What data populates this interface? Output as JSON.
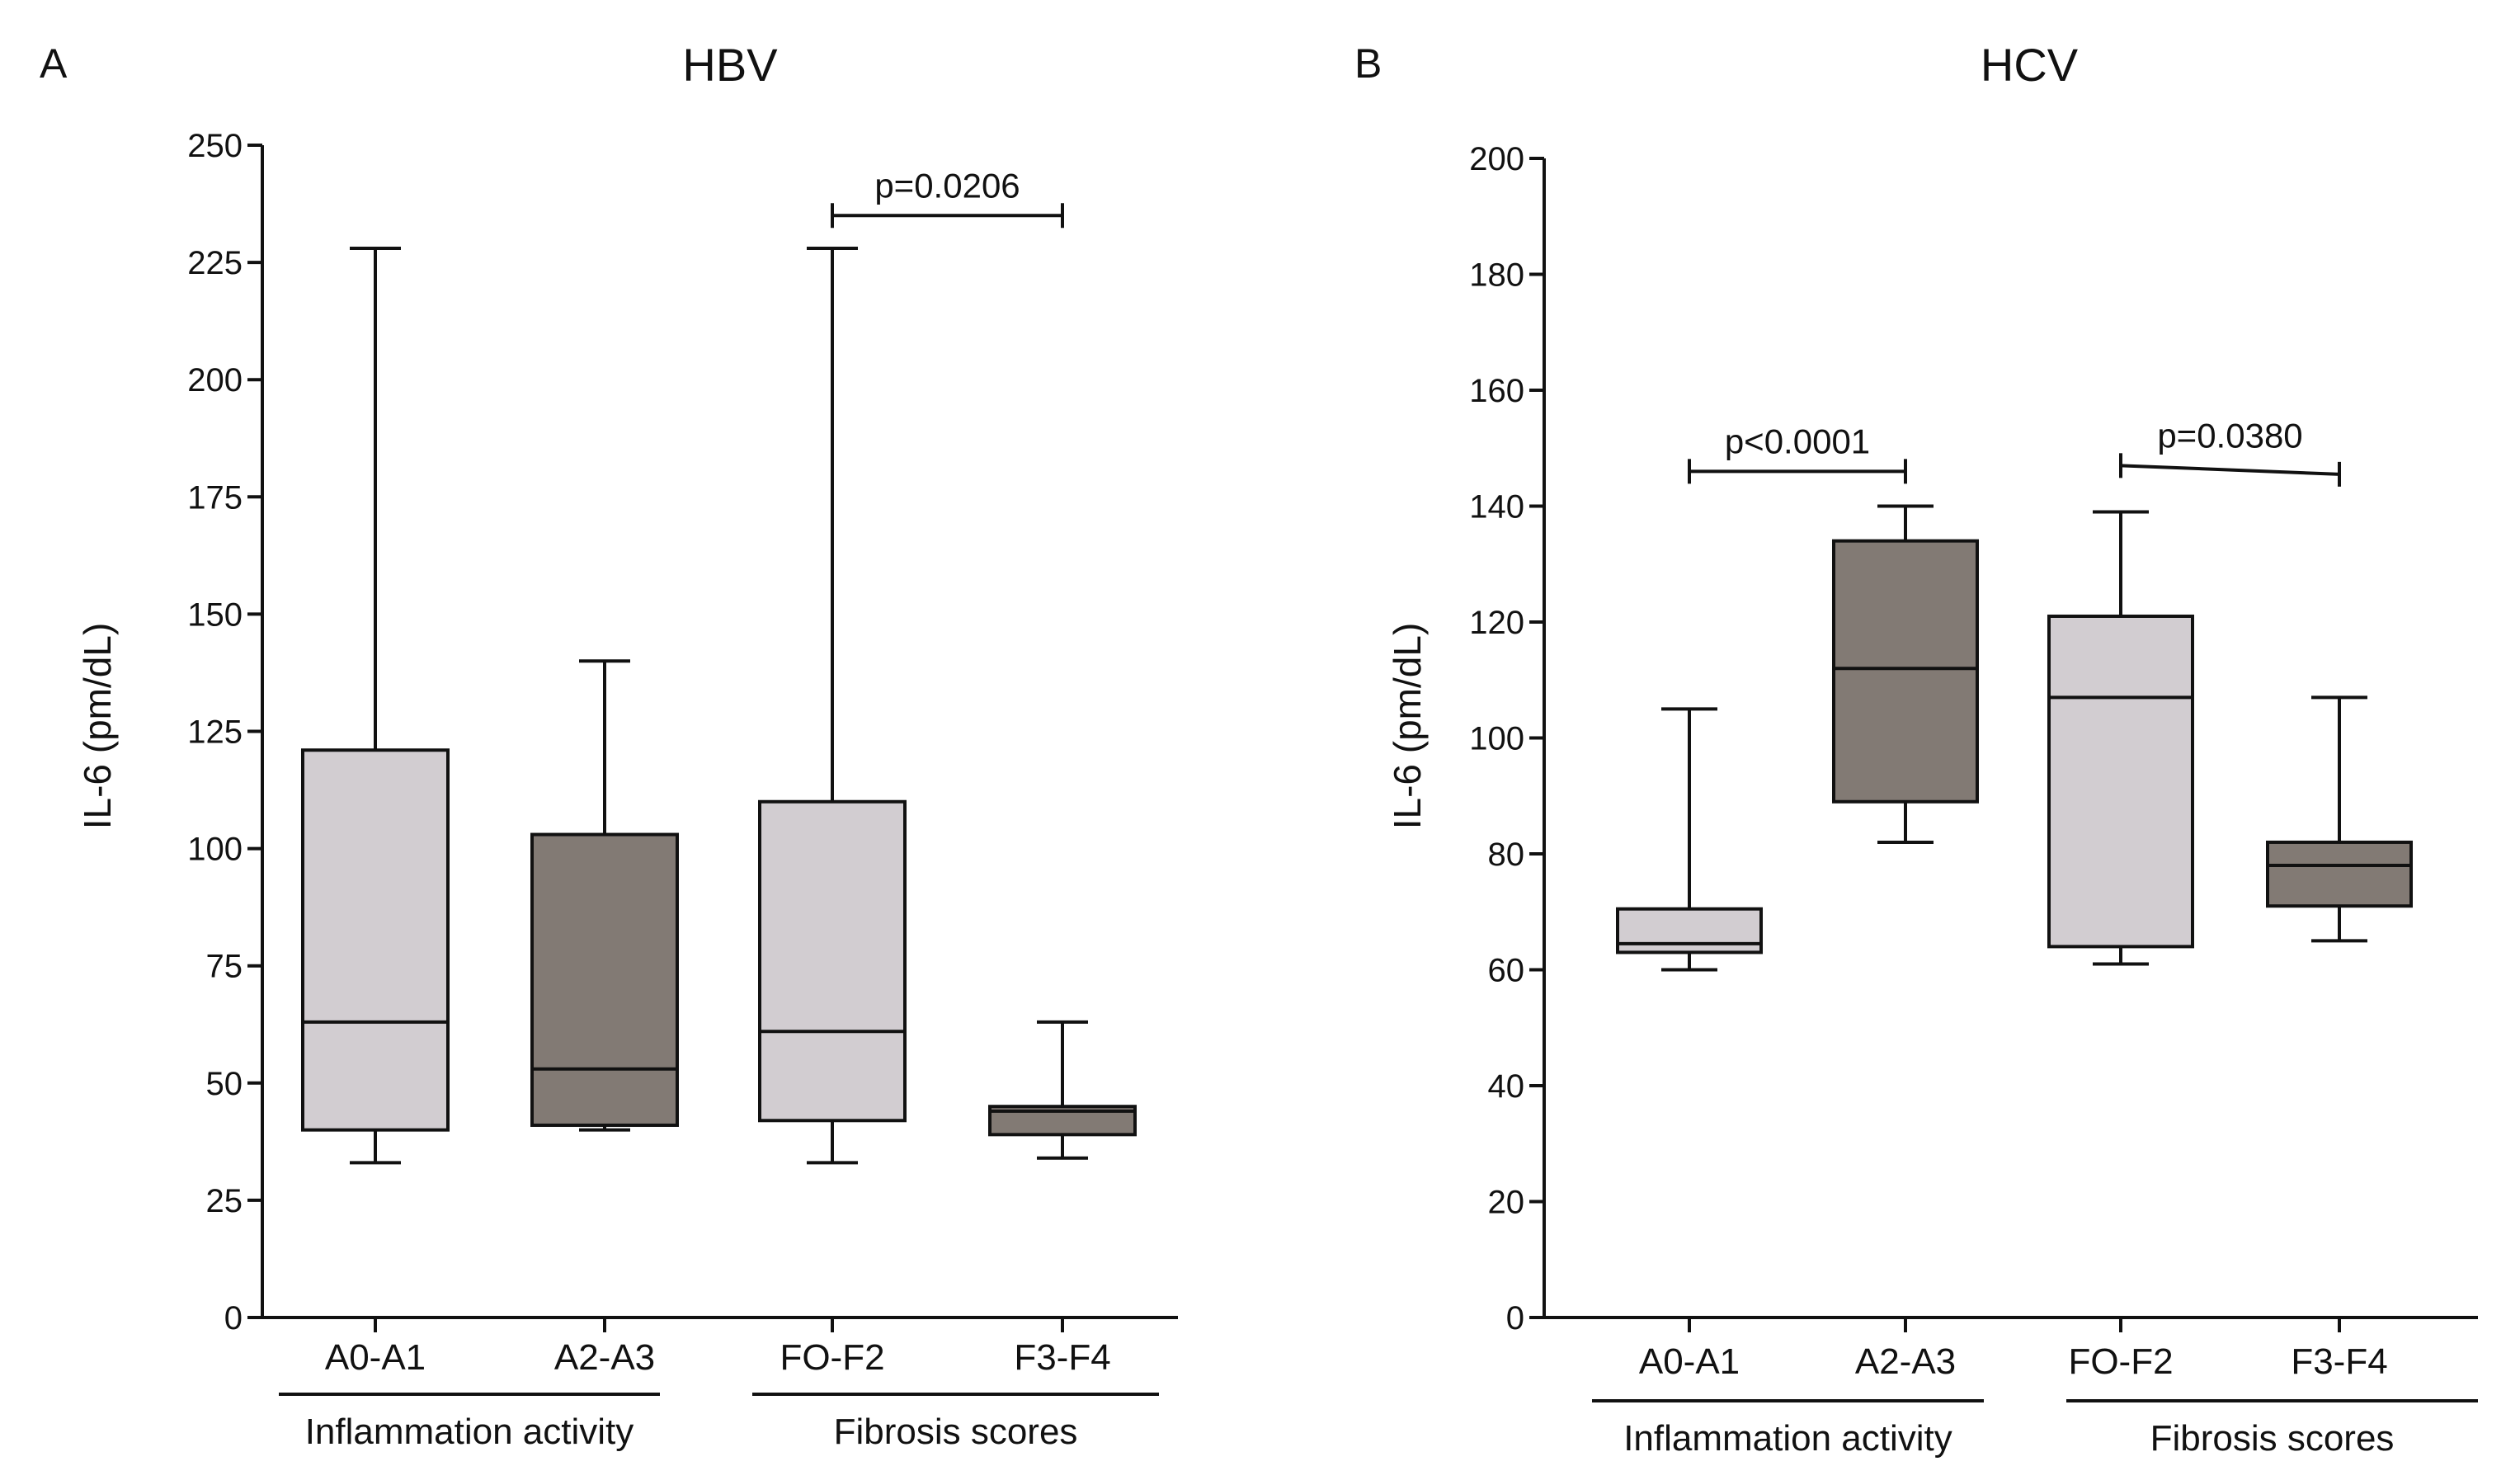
{
  "chart_data": [
    {
      "type": "boxplot",
      "panel_letter": "A",
      "title": "HBV",
      "ylabel": "IL-6 (pm/dL)",
      "ylim": [
        0,
        250
      ],
      "yticks": [
        0,
        25,
        50,
        75,
        100,
        125,
        150,
        175,
        200,
        225,
        250
      ],
      "categories": [
        "A0-A1",
        "A2-A3",
        "FO-F2",
        "F3-F4"
      ],
      "groups": [
        {
          "label": "Inflammation activity",
          "categories": [
            0,
            1
          ]
        },
        {
          "label": "Fibrosis scores",
          "categories": [
            2,
            3
          ]
        }
      ],
      "boxes": [
        {
          "category": "A0-A1",
          "min": 33,
          "q1": 40,
          "median": 63,
          "q3": 121,
          "max": 228,
          "shade": "light"
        },
        {
          "category": "A2-A3",
          "min": 40,
          "q1": 41,
          "median": 53,
          "q3": 103,
          "max": 140,
          "shade": "dark"
        },
        {
          "category": "FO-F2",
          "min": 33,
          "q1": 42,
          "median": 61,
          "q3": 110,
          "max": 228,
          "shade": "light"
        },
        {
          "category": "F3-F4",
          "min": 34,
          "q1": 39,
          "median": 44,
          "q3": 45,
          "max": 63,
          "shade": "dark"
        }
      ],
      "significance": [
        {
          "from": 2,
          "to": 3,
          "y_left": 235,
          "y_right": 235,
          "label": "p=0.0206"
        }
      ]
    },
    {
      "type": "boxplot",
      "panel_letter": "B",
      "title": "HCV",
      "ylabel": "IL-6 (pm/dL)",
      "ylim": [
        0,
        200
      ],
      "yticks": [
        0,
        20,
        40,
        60,
        80,
        100,
        120,
        140,
        160,
        180,
        200
      ],
      "categories": [
        "A0-A1",
        "A2-A3",
        "FO-F2",
        "F3-F4"
      ],
      "groups": [
        {
          "label": "Inflammation activity",
          "categories": [
            0,
            1
          ]
        },
        {
          "label": "Fibrosis scores",
          "categories": [
            2,
            3
          ]
        }
      ],
      "boxes": [
        {
          "category": "A0-A1",
          "min": 60,
          "q1": 63,
          "median": 64.5,
          "q3": 70.5,
          "max": 105,
          "shade": "light"
        },
        {
          "category": "A2-A3",
          "min": 82,
          "q1": 89,
          "median": 112,
          "q3": 134,
          "max": 140,
          "shade": "dark"
        },
        {
          "category": "FO-F2",
          "min": 61,
          "q1": 64,
          "median": 107,
          "q3": 121,
          "max": 139,
          "shade": "light"
        },
        {
          "category": "F3-F4",
          "min": 65,
          "q1": 71,
          "median": 78,
          "q3": 82,
          "max": 107,
          "shade": "dark"
        }
      ],
      "significance": [
        {
          "from": 0,
          "to": 1,
          "y_left": 146,
          "y_right": 146,
          "label": "p<0.0001"
        },
        {
          "from": 2,
          "to": 3,
          "y_left": 147,
          "y_right": 145.5,
          "label": "p=0.0380"
        }
      ]
    }
  ],
  "colors": {
    "light_box": "#d2cdd1",
    "dark_box": "#827a74",
    "line": "#111111",
    "background": "#ffffff"
  }
}
